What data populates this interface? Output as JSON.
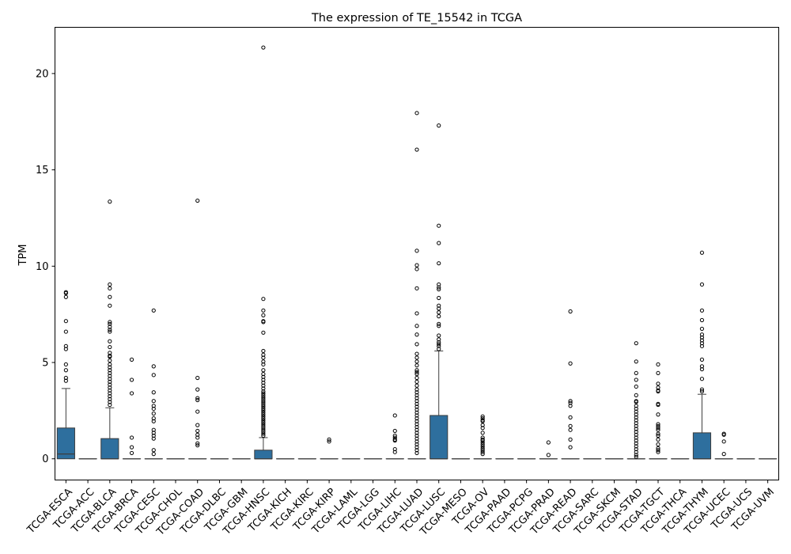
{
  "chart_data": {
    "type": "box",
    "title": "The expression of TE_15542 in TCGA",
    "xlabel": "",
    "ylabel": "TPM",
    "ylim": [
      -1.1,
      22.4
    ],
    "yticks": [
      0,
      5,
      10,
      15,
      20
    ],
    "grid": false,
    "legend": "none",
    "box_color": "#2e6f9e",
    "categories": [
      "TCGA-ESCA",
      "TCGA-ACC",
      "TCGA-BLCA",
      "TCGA-BRCA",
      "TCGA-CESC",
      "TCGA-CHOL",
      "TCGA-COAD",
      "TCGA-DLBC",
      "TCGA-GBM",
      "TCGA-HNSC",
      "TCGA-KICH",
      "TCGA-KIRC",
      "TCGA-KIRP",
      "TCGA-LAML",
      "TCGA-LGG",
      "TCGA-LIHC",
      "TCGA-LUAD",
      "TCGA-LUSC",
      "TCGA-MESO",
      "TCGA-OV",
      "TCGA-PAAD",
      "TCGA-PCPG",
      "TCGA-PRAD",
      "TCGA-READ",
      "TCGA-SARC",
      "TCGA-SKCM",
      "TCGA-STAD",
      "TCGA-TGCT",
      "TCGA-THCA",
      "TCGA-THYM",
      "TCGA-UCEC",
      "TCGA-UCS",
      "TCGA-UVM"
    ],
    "boxes": [
      {
        "q1": 0,
        "median": 0.25,
        "q3": 1.6,
        "whisker_low": 0,
        "whisker_high": 3.65,
        "outliers": [
          8.65,
          8.6,
          8.4,
          7.15,
          6.6,
          5.85,
          5.7,
          4.9,
          4.6,
          4.2,
          4.05
        ]
      },
      {
        "q1": 0,
        "median": 0,
        "q3": 0,
        "whisker_low": 0,
        "whisker_high": 0,
        "outliers": []
      },
      {
        "q1": 0,
        "median": 0,
        "q3": 1.05,
        "whisker_low": 0,
        "whisker_high": 2.65,
        "outliers": [
          13.35,
          9.05,
          8.85,
          8.4,
          7.95,
          7.1,
          7.0,
          6.85,
          6.7,
          6.6,
          6.1,
          5.8,
          5.5,
          5.35,
          5.3,
          5.1,
          4.9,
          4.75,
          4.6,
          4.45,
          4.3,
          4.15,
          4.0,
          3.85,
          3.7,
          3.55,
          3.4,
          3.25,
          3.1,
          2.95,
          2.8
        ]
      },
      {
        "q1": 0,
        "median": 0,
        "q3": 0,
        "whisker_low": 0,
        "whisker_high": 0,
        "outliers": [
          5.15,
          4.1,
          3.4,
          1.1,
          0.6,
          0.3
        ]
      },
      {
        "q1": 0,
        "median": 0,
        "q3": 0,
        "whisker_low": 0,
        "whisker_high": 0,
        "outliers": [
          7.7,
          4.8,
          4.35,
          3.45,
          3.0,
          2.75,
          2.6,
          2.35,
          2.1,
          1.95,
          1.5,
          1.35,
          1.2,
          1.05,
          0.45,
          0.25
        ]
      },
      {
        "q1": 0,
        "median": 0,
        "q3": 0,
        "whisker_low": 0,
        "whisker_high": 0,
        "outliers": []
      },
      {
        "q1": 0,
        "median": 0,
        "q3": 0,
        "whisker_low": 0,
        "whisker_high": 0,
        "outliers": [
          13.4,
          4.2,
          3.6,
          3.15,
          3.05,
          2.45,
          1.75,
          1.45,
          1.25,
          1.1,
          0.8,
          0.7
        ]
      },
      {
        "q1": 0,
        "median": 0,
        "q3": 0,
        "whisker_low": 0,
        "whisker_high": 0,
        "outliers": []
      },
      {
        "q1": 0,
        "median": 0,
        "q3": 0,
        "whisker_low": 0,
        "whisker_high": 0,
        "outliers": []
      },
      {
        "q1": 0,
        "median": 0,
        "q3": 0.45,
        "whisker_low": 0,
        "whisker_high": 1.1,
        "outliers": [
          21.35,
          8.3,
          7.7,
          7.45,
          7.15,
          7.1,
          6.55,
          5.6,
          5.4,
          5.25,
          5.05,
          4.9,
          4.6,
          4.4,
          4.25,
          4.1,
          3.95,
          3.8,
          3.65,
          3.5,
          3.4,
          3.3,
          3.2,
          3.1,
          3.0,
          2.9,
          2.8,
          2.7,
          2.6,
          2.5,
          2.4,
          2.3,
          2.2,
          2.1,
          2.0,
          1.9,
          1.8,
          1.7,
          1.6,
          1.5,
          1.4,
          1.3,
          1.2
        ]
      },
      {
        "q1": 0,
        "median": 0,
        "q3": 0,
        "whisker_low": 0,
        "whisker_high": 0,
        "outliers": []
      },
      {
        "q1": 0,
        "median": 0,
        "q3": 0,
        "whisker_low": 0,
        "whisker_high": 0,
        "outliers": []
      },
      {
        "q1": 0,
        "median": 0,
        "q3": 0,
        "whisker_low": 0,
        "whisker_high": 0,
        "outliers": [
          1.0,
          0.9
        ]
      },
      {
        "q1": 0,
        "median": 0,
        "q3": 0,
        "whisker_low": 0,
        "whisker_high": 0,
        "outliers": []
      },
      {
        "q1": 0,
        "median": 0,
        "q3": 0,
        "whisker_low": 0,
        "whisker_high": 0,
        "outliers": []
      },
      {
        "q1": 0,
        "median": 0,
        "q3": 0,
        "whisker_low": 0,
        "whisker_high": 0,
        "outliers": [
          2.25,
          1.45,
          1.2,
          1.1,
          1.0,
          0.95,
          0.5,
          0.35
        ]
      },
      {
        "q1": 0,
        "median": 0,
        "q3": 0,
        "whisker_low": 0,
        "whisker_high": 0,
        "outliers": [
          17.95,
          16.05,
          10.8,
          10.05,
          9.85,
          8.85,
          7.55,
          6.9,
          6.45,
          5.95,
          5.45,
          5.25,
          5.05,
          4.85,
          4.6,
          4.5,
          4.4,
          4.2,
          4.0,
          3.8,
          3.6,
          3.45,
          3.3,
          3.15,
          3.0,
          2.85,
          2.7,
          2.55,
          2.4,
          2.25,
          2.1,
          1.95,
          1.8,
          1.65,
          1.5,
          1.35,
          1.2,
          1.05,
          0.9,
          0.75,
          0.6,
          0.45,
          0.3
        ]
      },
      {
        "q1": 0,
        "median": 0,
        "q3": 2.25,
        "whisker_low": 0,
        "whisker_high": 5.6,
        "outliers": [
          17.3,
          12.1,
          11.2,
          10.15,
          9.05,
          8.9,
          8.8,
          8.35,
          7.95,
          7.8,
          7.6,
          7.4,
          7.0,
          6.9,
          6.4,
          6.2,
          6.05,
          5.95,
          5.85,
          5.7
        ]
      },
      {
        "q1": 0,
        "median": 0,
        "q3": 0,
        "whisker_low": 0,
        "whisker_high": 0,
        "outliers": []
      },
      {
        "q1": 0,
        "median": 0,
        "q3": 0,
        "whisker_low": 0,
        "whisker_high": 0,
        "outliers": [
          2.2,
          2.1,
          2.0,
          1.95,
          1.75,
          1.6,
          1.35,
          1.1,
          1.0,
          0.95,
          0.85,
          0.75,
          0.65,
          0.55,
          0.45,
          0.35,
          0.25
        ]
      },
      {
        "q1": 0,
        "median": 0,
        "q3": 0,
        "whisker_low": 0,
        "whisker_high": 0,
        "outliers": []
      },
      {
        "q1": 0,
        "median": 0,
        "q3": 0,
        "whisker_low": 0,
        "whisker_high": 0,
        "outliers": []
      },
      {
        "q1": 0,
        "median": 0,
        "q3": 0,
        "whisker_low": 0,
        "whisker_high": 0,
        "outliers": [
          0.85,
          0.2
        ]
      },
      {
        "q1": 0,
        "median": 0,
        "q3": 0,
        "whisker_low": 0,
        "whisker_high": 0,
        "outliers": [
          7.65,
          4.95,
          3.0,
          2.9,
          2.75,
          2.15,
          1.7,
          1.5,
          1.0,
          0.6
        ]
      },
      {
        "q1": 0,
        "median": 0,
        "q3": 0,
        "whisker_low": 0,
        "whisker_high": 0,
        "outliers": []
      },
      {
        "q1": 0,
        "median": 0,
        "q3": 0,
        "whisker_low": 0,
        "whisker_high": 0,
        "outliers": []
      },
      {
        "q1": 0,
        "median": 0,
        "q3": 0,
        "whisker_low": 0,
        "whisker_high": 0,
        "outliers": [
          6.0,
          5.05,
          4.45,
          4.1,
          3.75,
          3.3,
          3.0,
          2.95,
          2.75,
          2.6,
          2.45,
          2.3,
          2.15,
          2.0,
          1.85,
          1.7,
          1.55,
          1.4,
          1.25,
          1.1,
          0.95,
          0.8,
          0.65,
          0.5,
          0.35,
          0.2,
          0.1
        ]
      },
      {
        "q1": 0,
        "median": 0,
        "q3": 0,
        "whisker_low": 0,
        "whisker_high": 0,
        "outliers": [
          4.9,
          4.45,
          3.9,
          3.7,
          3.55,
          3.5,
          2.85,
          2.8,
          2.3,
          1.8,
          1.7,
          1.6,
          1.5,
          1.3,
          1.2,
          1.0,
          0.75,
          0.55,
          0.45,
          0.35
        ]
      },
      {
        "q1": 0,
        "median": 0,
        "q3": 0,
        "whisker_low": 0,
        "whisker_high": 0,
        "outliers": []
      },
      {
        "q1": 0,
        "median": 0,
        "q3": 1.35,
        "whisker_low": 0,
        "whisker_high": 3.35,
        "outliers": [
          10.7,
          9.05,
          7.7,
          7.2,
          6.75,
          6.45,
          6.3,
          6.15,
          6.0,
          5.85,
          5.15,
          4.8,
          4.65,
          4.15,
          3.6,
          3.5
        ]
      },
      {
        "q1": 0,
        "median": 0,
        "q3": 0,
        "whisker_low": 0,
        "whisker_high": 0,
        "outliers": [
          1.3,
          1.25,
          0.9,
          0.25
        ]
      },
      {
        "q1": 0,
        "median": 0,
        "q3": 0,
        "whisker_low": 0,
        "whisker_high": 0,
        "outliers": []
      },
      {
        "q1": 0,
        "median": 0,
        "q3": 0,
        "whisker_low": 0,
        "whisker_high": 0,
        "outliers": []
      }
    ]
  }
}
